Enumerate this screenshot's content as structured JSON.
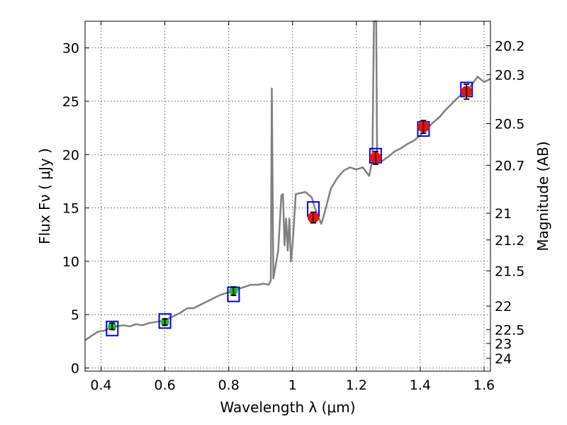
{
  "chart_data": {
    "type": "line",
    "xlabel": "Wavelength  λ (μm)",
    "ylabel": "Flux  Fν  ( μJy )",
    "ylabel_right": "Magnitude (AB)",
    "xlim": [
      0.35,
      1.62
    ],
    "ylim": [
      -0.3,
      32.5
    ],
    "grid": true,
    "x_ticks": [
      0.4,
      0.6,
      0.8,
      1.0,
      1.2,
      1.4,
      1.6
    ],
    "x_tick_labels": [
      "0.4",
      "0.6",
      "0.8",
      "1",
      "1.2",
      "1.4",
      "1.6"
    ],
    "y_ticks": [
      0,
      5,
      10,
      15,
      20,
      25,
      30
    ],
    "y_tick_labels": [
      "0",
      "5",
      "10",
      "15",
      "20",
      "25",
      "30"
    ],
    "right_ticks": [
      {
        "label": "20.2",
        "flux": 30.2
      },
      {
        "label": "20.3",
        "flux": 27.5
      },
      {
        "label": "20.5",
        "flux": 22.9
      },
      {
        "label": "20.7",
        "flux": 19.0
      },
      {
        "label": "21",
        "flux": 14.5
      },
      {
        "label": "21.2",
        "flux": 12.0
      },
      {
        "label": "21.5",
        "flux": 9.1
      },
      {
        "label": "22",
        "flux": 5.8
      },
      {
        "label": "22.5",
        "flux": 3.6
      },
      {
        "label": "23",
        "flux": 2.3
      },
      {
        "label": "24",
        "flux": 0.9
      }
    ],
    "series": [
      {
        "name": "model spectrum",
        "color": "#808080",
        "points": [
          [
            0.35,
            2.6
          ],
          [
            0.37,
            3.0
          ],
          [
            0.39,
            3.4
          ],
          [
            0.41,
            3.5
          ],
          [
            0.43,
            3.8
          ],
          [
            0.45,
            3.9
          ],
          [
            0.47,
            4.0
          ],
          [
            0.49,
            3.9
          ],
          [
            0.51,
            4.1
          ],
          [
            0.53,
            4.0
          ],
          [
            0.55,
            4.2
          ],
          [
            0.57,
            4.3
          ],
          [
            0.59,
            4.4
          ],
          [
            0.61,
            4.6
          ],
          [
            0.63,
            4.9
          ],
          [
            0.65,
            5.2
          ],
          [
            0.67,
            5.6
          ],
          [
            0.69,
            5.6
          ],
          [
            0.71,
            5.9
          ],
          [
            0.73,
            6.2
          ],
          [
            0.75,
            6.5
          ],
          [
            0.77,
            6.8
          ],
          [
            0.79,
            7.0
          ],
          [
            0.81,
            7.2
          ],
          [
            0.83,
            7.4
          ],
          [
            0.85,
            7.6
          ],
          [
            0.87,
            7.8
          ],
          [
            0.89,
            7.8
          ],
          [
            0.91,
            7.9
          ],
          [
            0.925,
            7.8
          ],
          [
            0.932,
            8.2
          ],
          [
            0.935,
            26.2
          ],
          [
            0.94,
            8.4
          ],
          [
            0.955,
            11.0
          ],
          [
            0.965,
            16.2
          ],
          [
            0.97,
            16.3
          ],
          [
            0.975,
            11.5
          ],
          [
            0.98,
            14.0
          ],
          [
            0.985,
            11.0
          ],
          [
            0.99,
            14.0
          ],
          [
            0.995,
            10.0
          ],
          [
            1.0,
            11.5
          ],
          [
            1.01,
            16.3
          ],
          [
            1.04,
            16.5
          ],
          [
            1.06,
            16.0
          ],
          [
            1.07,
            15.0
          ],
          [
            1.09,
            13.5
          ],
          [
            1.1,
            14.5
          ],
          [
            1.12,
            16.8
          ],
          [
            1.14,
            17.8
          ],
          [
            1.16,
            18.5
          ],
          [
            1.18,
            18.8
          ],
          [
            1.2,
            18.6
          ],
          [
            1.22,
            18.8
          ],
          [
            1.24,
            18.0
          ],
          [
            1.25,
            19.5
          ],
          [
            1.255,
            32.5
          ],
          [
            1.262,
            32.5
          ],
          [
            1.265,
            19.6
          ],
          [
            1.28,
            19.4
          ],
          [
            1.3,
            19.8
          ],
          [
            1.32,
            20.3
          ],
          [
            1.34,
            20.6
          ],
          [
            1.36,
            21.0
          ],
          [
            1.38,
            21.3
          ],
          [
            1.4,
            21.8
          ],
          [
            1.42,
            22.4
          ],
          [
            1.44,
            23.0
          ],
          [
            1.46,
            23.5
          ],
          [
            1.48,
            24.2
          ],
          [
            1.5,
            24.8
          ],
          [
            1.52,
            25.4
          ],
          [
            1.54,
            25.8
          ],
          [
            1.56,
            26.5
          ],
          [
            1.58,
            27.3
          ],
          [
            1.6,
            26.8
          ],
          [
            1.62,
            27.1
          ]
        ]
      }
    ],
    "photometry_green": [
      {
        "x": 0.435,
        "y": 3.9,
        "err": 0.3
      },
      {
        "x": 0.6,
        "y": 4.3,
        "err": 0.3
      },
      {
        "x": 0.815,
        "y": 7.2,
        "err": 0.4
      }
    ],
    "photometry_red": [
      {
        "x": 1.065,
        "y": 14.1,
        "err": 0.5
      },
      {
        "x": 1.26,
        "y": 19.7,
        "err": 0.6
      },
      {
        "x": 1.41,
        "y": 22.6,
        "err": 0.6
      },
      {
        "x": 1.545,
        "y": 25.9,
        "err": 0.7
      }
    ],
    "model_boxes": [
      {
        "x": 0.435,
        "y": 3.7
      },
      {
        "x": 0.6,
        "y": 4.4
      },
      {
        "x": 0.815,
        "y": 6.9
      },
      {
        "x": 1.065,
        "y": 14.9
      },
      {
        "x": 1.26,
        "y": 19.9
      },
      {
        "x": 1.41,
        "y": 22.4
      },
      {
        "x": 1.545,
        "y": 26.1
      }
    ],
    "colors": {
      "spectrum": "#808080",
      "green": "#22bb22",
      "red": "#ee1111",
      "box": "#0000ee",
      "error": "#000000"
    }
  }
}
